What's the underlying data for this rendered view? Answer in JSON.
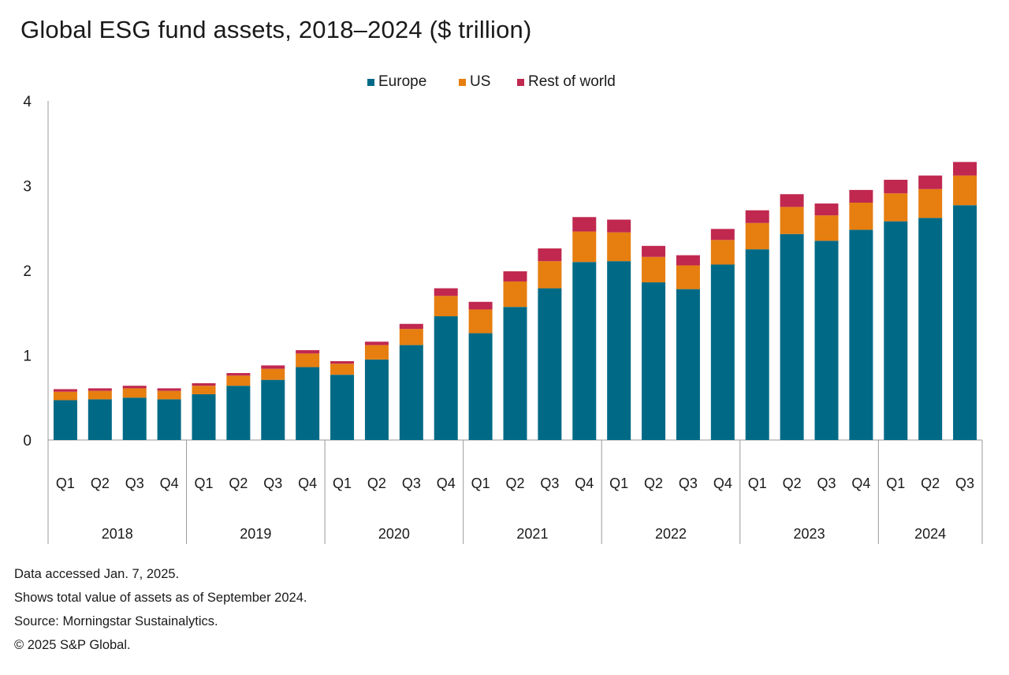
{
  "title": "Global ESG fund assets, 2018–2024 ($ trillion)",
  "colors": {
    "europe": "#006a86",
    "us": "#e67e10",
    "rest": "#c0284f",
    "axis": "#999999",
    "text": "#1a1a1a"
  },
  "notes": [
    "Data accessed Jan. 7, 2025.",
    "Shows total value of assets as of September 2024.",
    "Source: Morningstar Sustainalytics.",
    "© 2025 S&P Global."
  ],
  "chart_data": {
    "type": "bar",
    "stacked": true,
    "legend_position": "top-center",
    "grid": false,
    "ylim": [
      0,
      4
    ],
    "yticks": [
      "0",
      "1",
      "2",
      "3",
      "4"
    ],
    "years": [
      "2018",
      "2019",
      "2020",
      "2021",
      "2022",
      "2023",
      "2024"
    ],
    "categories": [
      "Q1",
      "Q2",
      "Q3",
      "Q4",
      "Q1",
      "Q2",
      "Q3",
      "Q4",
      "Q1",
      "Q2",
      "Q3",
      "Q4",
      "Q1",
      "Q2",
      "Q3",
      "Q4",
      "Q1",
      "Q2",
      "Q3",
      "Q4",
      "Q1",
      "Q2",
      "Q3",
      "Q4",
      "Q1",
      "Q2",
      "Q3"
    ],
    "category_years": [
      "2018",
      "2018",
      "2018",
      "2018",
      "2019",
      "2019",
      "2019",
      "2019",
      "2020",
      "2020",
      "2020",
      "2020",
      "2021",
      "2021",
      "2021",
      "2021",
      "2022",
      "2022",
      "2022",
      "2022",
      "2023",
      "2023",
      "2023",
      "2023",
      "2024",
      "2024",
      "2024"
    ],
    "series": [
      {
        "name": "Europe",
        "color": "#006a86",
        "values": [
          0.47,
          0.48,
          0.5,
          0.48,
          0.54,
          0.64,
          0.71,
          0.86,
          0.77,
          0.95,
          1.12,
          1.46,
          1.26,
          1.57,
          1.79,
          2.1,
          2.11,
          1.86,
          1.78,
          2.07,
          2.25,
          2.43,
          2.35,
          2.48,
          2.58,
          2.62,
          2.77
        ]
      },
      {
        "name": "US",
        "color": "#e67e10",
        "values": [
          0.1,
          0.1,
          0.11,
          0.1,
          0.1,
          0.12,
          0.13,
          0.16,
          0.13,
          0.17,
          0.19,
          0.24,
          0.28,
          0.3,
          0.32,
          0.36,
          0.34,
          0.3,
          0.28,
          0.29,
          0.31,
          0.32,
          0.3,
          0.32,
          0.33,
          0.34,
          0.35
        ]
      },
      {
        "name": "Rest of world",
        "color": "#c0284f",
        "values": [
          0.03,
          0.03,
          0.03,
          0.03,
          0.03,
          0.03,
          0.04,
          0.04,
          0.03,
          0.04,
          0.06,
          0.09,
          0.09,
          0.12,
          0.15,
          0.17,
          0.15,
          0.13,
          0.12,
          0.13,
          0.15,
          0.15,
          0.14,
          0.15,
          0.16,
          0.16,
          0.16
        ]
      }
    ]
  }
}
